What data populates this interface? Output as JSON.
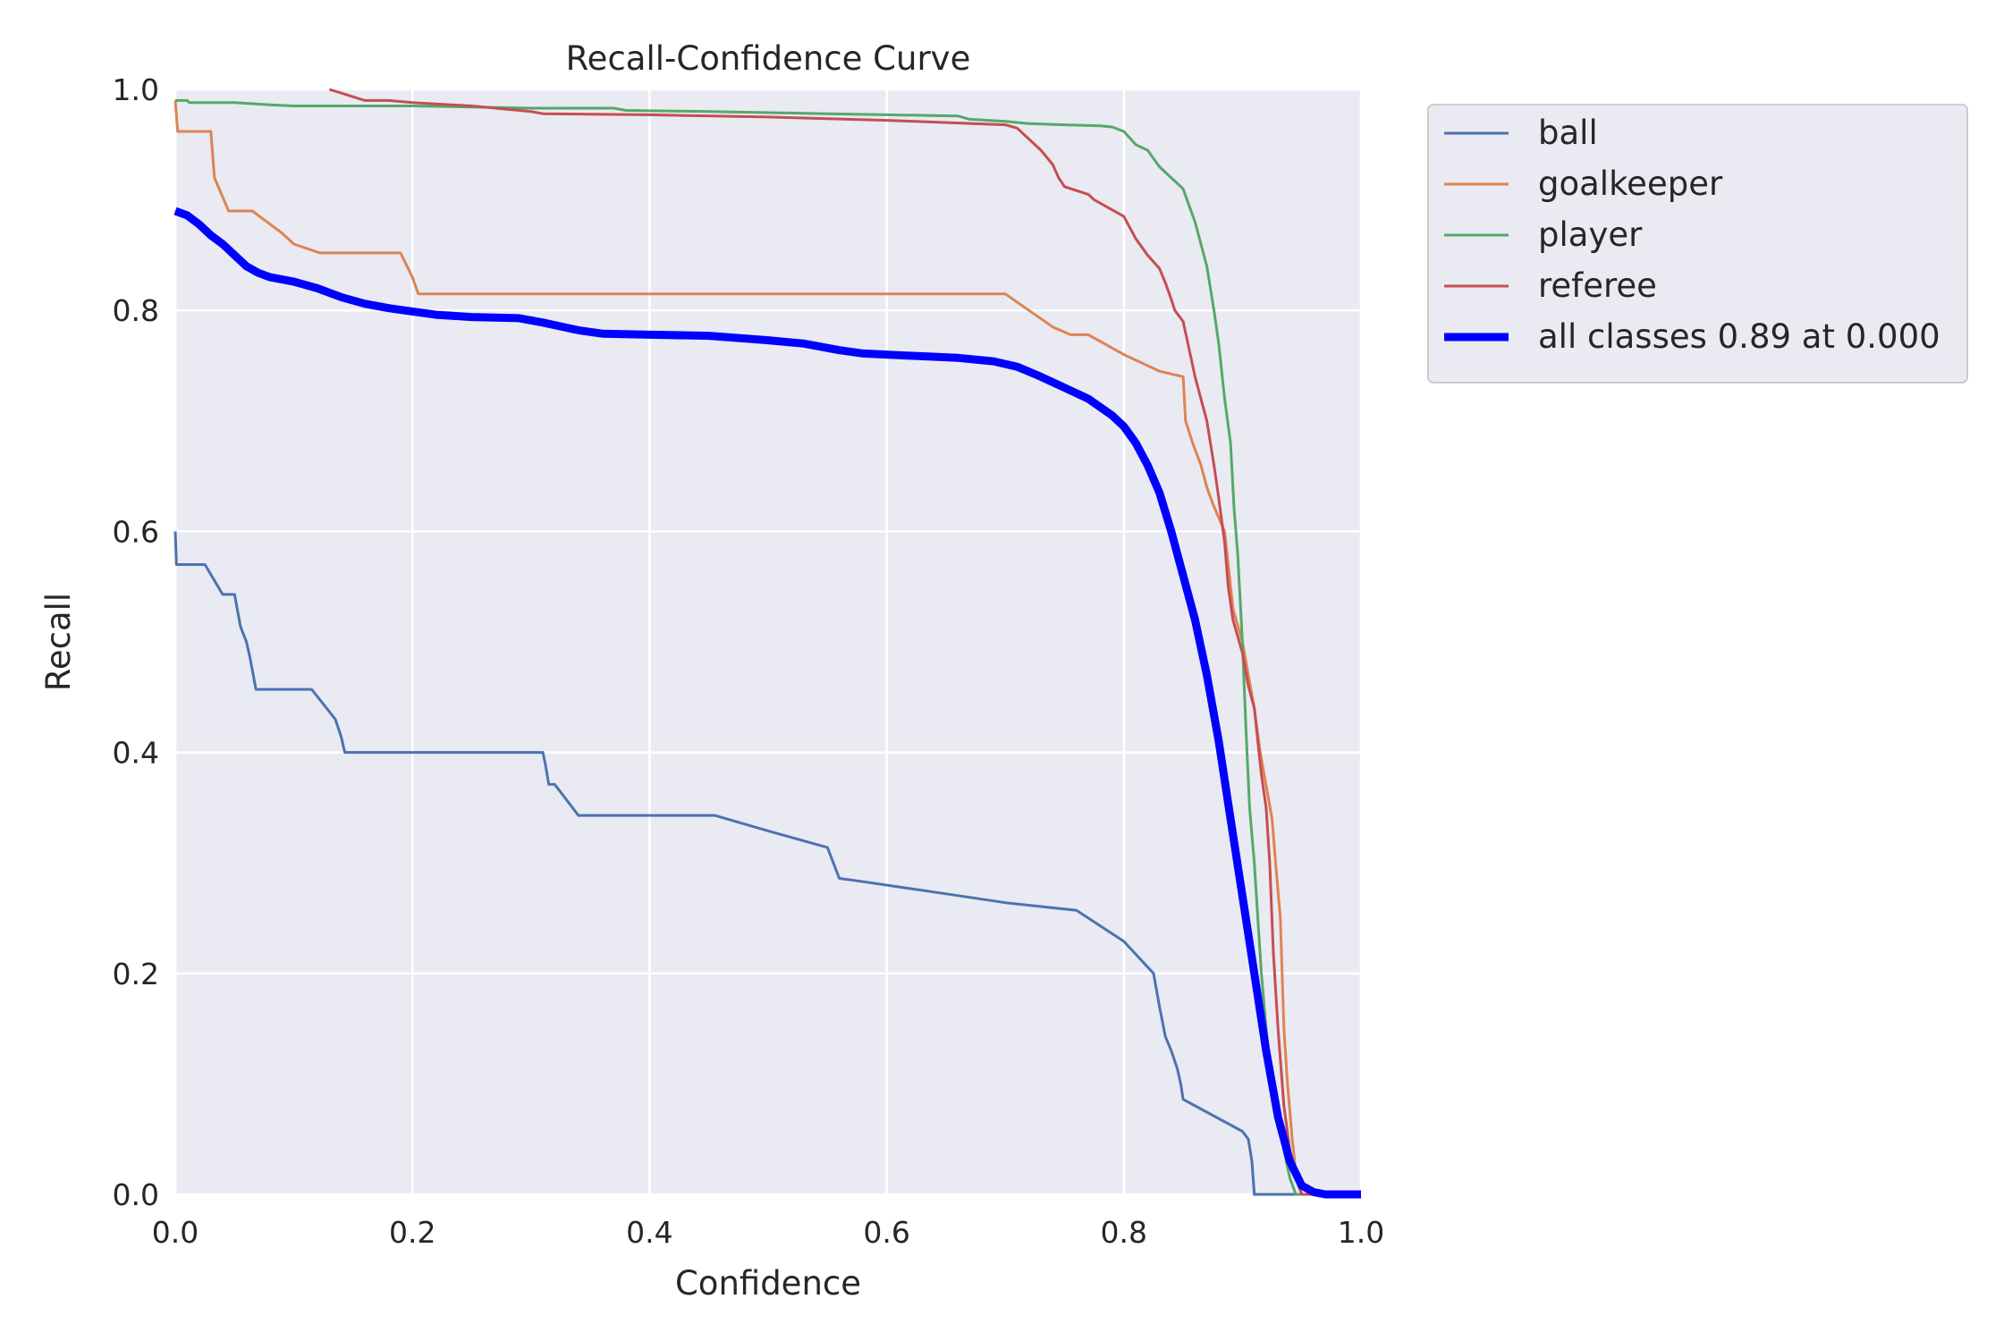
{
  "chart_data": {
    "type": "line",
    "title": "Recall-Confidence Curve",
    "xlabel": "Confidence",
    "ylabel": "Recall",
    "xlim": [
      0,
      1
    ],
    "ylim": [
      0,
      1
    ],
    "xticks": [
      "0.0",
      "0.2",
      "0.4",
      "0.6",
      "0.8",
      "1.0"
    ],
    "yticks": [
      "0.0",
      "0.2",
      "0.4",
      "0.6",
      "0.8",
      "1.0"
    ],
    "grid": true,
    "legend_position": "outside-top-right",
    "background_color": "#EAEAF2",
    "series": [
      {
        "name": "ball",
        "color": "#4C72B0",
        "width": 2,
        "x": [
          0.0,
          0.001,
          0.02,
          0.025,
          0.04,
          0.045,
          0.05,
          0.055,
          0.06,
          0.063,
          0.068,
          0.1,
          0.115,
          0.135,
          0.14,
          0.143,
          0.2,
          0.25,
          0.3,
          0.31,
          0.312,
          0.315,
          0.32,
          0.33,
          0.34,
          0.36,
          0.4,
          0.455,
          0.5,
          0.55,
          0.56,
          0.58,
          0.65,
          0.7,
          0.76,
          0.8,
          0.825,
          0.83,
          0.835,
          0.84,
          0.845,
          0.848,
          0.85,
          0.9,
          0.905,
          0.908,
          0.91,
          1.0
        ],
        "y": [
          0.6,
          0.57,
          0.57,
          0.57,
          0.543,
          0.543,
          0.543,
          0.514,
          0.5,
          0.486,
          0.457,
          0.457,
          0.457,
          0.43,
          0.414,
          0.4,
          0.4,
          0.4,
          0.4,
          0.4,
          0.39,
          0.371,
          0.371,
          0.357,
          0.343,
          0.343,
          0.343,
          0.343,
          0.329,
          0.314,
          0.286,
          0.283,
          0.272,
          0.264,
          0.257,
          0.229,
          0.2,
          0.17,
          0.143,
          0.13,
          0.114,
          0.1,
          0.086,
          0.057,
          0.05,
          0.03,
          0.0,
          0.0
        ]
      },
      {
        "name": "goalkeeper",
        "color": "#DD8452",
        "width": 2,
        "x": [
          0.0,
          0.002,
          0.005,
          0.03,
          0.033,
          0.045,
          0.065,
          0.09,
          0.1,
          0.122,
          0.15,
          0.19,
          0.2,
          0.205,
          0.25,
          0.35,
          0.45,
          0.55,
          0.65,
          0.7,
          0.72,
          0.74,
          0.755,
          0.77,
          0.8,
          0.83,
          0.85,
          0.852,
          0.858,
          0.865,
          0.87,
          0.875,
          0.885,
          0.888,
          0.892,
          0.9,
          0.905,
          0.91,
          0.915,
          0.92,
          0.925,
          0.928,
          0.932,
          0.935,
          0.938,
          0.942,
          0.945,
          0.95,
          1.0
        ],
        "y": [
          0.99,
          0.962,
          0.962,
          0.962,
          0.92,
          0.89,
          0.89,
          0.87,
          0.86,
          0.852,
          0.852,
          0.852,
          0.83,
          0.815,
          0.815,
          0.815,
          0.815,
          0.815,
          0.815,
          0.815,
          0.8,
          0.785,
          0.778,
          0.778,
          0.76,
          0.745,
          0.74,
          0.7,
          0.68,
          0.66,
          0.64,
          0.625,
          0.6,
          0.57,
          0.53,
          0.5,
          0.47,
          0.44,
          0.4,
          0.37,
          0.34,
          0.3,
          0.25,
          0.15,
          0.1,
          0.05,
          0.02,
          0.0,
          0.0
        ]
      },
      {
        "name": "player",
        "color": "#55A868",
        "width": 2,
        "x": [
          0.0,
          0.01,
          0.012,
          0.05,
          0.08,
          0.1,
          0.2,
          0.25,
          0.3,
          0.37,
          0.38,
          0.45,
          0.5,
          0.55,
          0.6,
          0.66,
          0.67,
          0.7,
          0.72,
          0.75,
          0.78,
          0.79,
          0.8,
          0.81,
          0.82,
          0.83,
          0.84,
          0.85,
          0.855,
          0.86,
          0.865,
          0.87,
          0.873,
          0.876,
          0.88,
          0.885,
          0.89,
          0.893,
          0.896,
          0.9,
          0.903,
          0.906,
          0.91,
          0.913,
          0.916,
          0.92,
          0.925,
          0.93,
          0.935,
          0.94,
          0.945,
          0.95,
          1.0
        ],
        "y": [
          0.99,
          0.99,
          0.988,
          0.988,
          0.986,
          0.985,
          0.985,
          0.984,
          0.983,
          0.983,
          0.981,
          0.98,
          0.979,
          0.978,
          0.977,
          0.976,
          0.973,
          0.971,
          0.969,
          0.968,
          0.967,
          0.966,
          0.962,
          0.95,
          0.945,
          0.93,
          0.92,
          0.91,
          0.895,
          0.88,
          0.86,
          0.84,
          0.82,
          0.8,
          0.77,
          0.72,
          0.68,
          0.62,
          0.58,
          0.5,
          0.42,
          0.35,
          0.3,
          0.25,
          0.2,
          0.15,
          0.1,
          0.07,
          0.04,
          0.015,
          0.0,
          0.0,
          0.0
        ]
      },
      {
        "name": "referee",
        "color": "#C44E52",
        "width": 2,
        "x": [
          0.13,
          0.16,
          0.18,
          0.2,
          0.25,
          0.3,
          0.31,
          0.4,
          0.5,
          0.6,
          0.7,
          0.71,
          0.72,
          0.73,
          0.74,
          0.745,
          0.75,
          0.77,
          0.775,
          0.8,
          0.81,
          0.82,
          0.83,
          0.835,
          0.84,
          0.843,
          0.85,
          0.853,
          0.856,
          0.86,
          0.865,
          0.87,
          0.873,
          0.876,
          0.88,
          0.885,
          0.888,
          0.892,
          0.9,
          0.905,
          0.91,
          0.913,
          0.916,
          0.92,
          0.923,
          0.926,
          0.93,
          0.935,
          0.94,
          0.945,
          0.95,
          0.955,
          1.0
        ],
        "y": [
          1.0,
          0.99,
          0.99,
          0.988,
          0.985,
          0.98,
          0.978,
          0.977,
          0.975,
          0.972,
          0.968,
          0.965,
          0.955,
          0.945,
          0.932,
          0.92,
          0.912,
          0.905,
          0.9,
          0.885,
          0.865,
          0.85,
          0.838,
          0.825,
          0.81,
          0.8,
          0.79,
          0.775,
          0.76,
          0.74,
          0.72,
          0.7,
          0.68,
          0.66,
          0.63,
          0.59,
          0.55,
          0.52,
          0.49,
          0.46,
          0.44,
          0.41,
          0.38,
          0.35,
          0.3,
          0.22,
          0.15,
          0.08,
          0.04,
          0.015,
          0.0,
          0.0,
          0.0
        ]
      },
      {
        "name": "all classes 0.89 at 0.000",
        "color": "#0000FF",
        "width": 6,
        "x": [
          0.0,
          0.01,
          0.02,
          0.03,
          0.04,
          0.05,
          0.06,
          0.07,
          0.08,
          0.1,
          0.12,
          0.14,
          0.16,
          0.18,
          0.2,
          0.22,
          0.25,
          0.29,
          0.31,
          0.34,
          0.36,
          0.4,
          0.45,
          0.5,
          0.53,
          0.56,
          0.58,
          0.62,
          0.66,
          0.69,
          0.71,
          0.73,
          0.75,
          0.77,
          0.79,
          0.8,
          0.81,
          0.82,
          0.83,
          0.84,
          0.85,
          0.86,
          0.87,
          0.88,
          0.89,
          0.9,
          0.91,
          0.92,
          0.93,
          0.94,
          0.95,
          0.96,
          0.97,
          1.0
        ],
        "y": [
          0.89,
          0.886,
          0.878,
          0.868,
          0.86,
          0.85,
          0.84,
          0.834,
          0.83,
          0.826,
          0.82,
          0.812,
          0.806,
          0.802,
          0.799,
          0.796,
          0.794,
          0.793,
          0.789,
          0.782,
          0.779,
          0.778,
          0.777,
          0.773,
          0.77,
          0.764,
          0.761,
          0.759,
          0.757,
          0.754,
          0.749,
          0.74,
          0.73,
          0.72,
          0.705,
          0.695,
          0.68,
          0.66,
          0.635,
          0.6,
          0.56,
          0.52,
          0.47,
          0.41,
          0.34,
          0.27,
          0.2,
          0.13,
          0.07,
          0.03,
          0.008,
          0.002,
          0.0,
          0.0
        ]
      }
    ]
  }
}
